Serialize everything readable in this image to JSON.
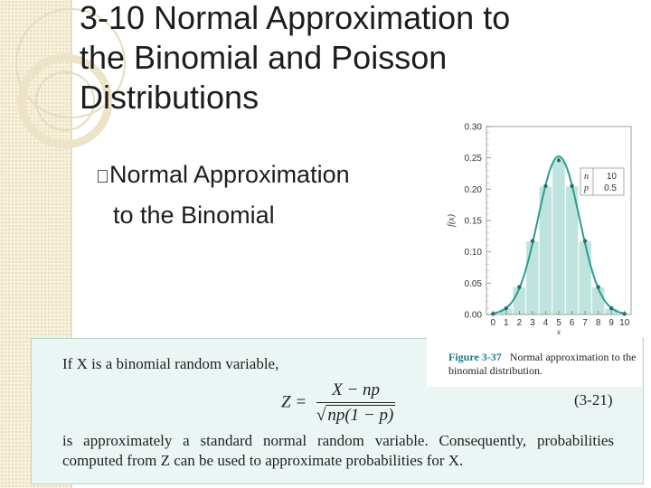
{
  "slide": {
    "title_lines": [
      "3-10 Normal Approximation to",
      "the Binomial and Poisson",
      "Distributions"
    ],
    "bullet_marker": "",
    "bullet_lines": [
      "Normal Approximation",
      "to the Binomial"
    ]
  },
  "figure": {
    "caption_label": "Figure 3-37",
    "caption_text": "Normal approximation to the binomial distribution.",
    "legend": {
      "n_label": "n",
      "n_value": "10",
      "p_label": "p",
      "p_value": "0.5"
    },
    "accent_color": "#2a9d8f",
    "bar_color": "#bfe3dd",
    "chart_data": {
      "type": "bar",
      "categories": [
        "0",
        "1",
        "2",
        "3",
        "4",
        "5",
        "6",
        "7",
        "8",
        "9",
        "10"
      ],
      "values": [
        0.001,
        0.0098,
        0.0439,
        0.1172,
        0.2051,
        0.2461,
        0.2051,
        0.1172,
        0.0439,
        0.0098,
        0.001
      ],
      "xlabel": "x",
      "ylabel": "f(x)",
      "yticks": [
        "0.00",
        "0.05",
        "0.10",
        "0.15",
        "0.20",
        "0.25",
        "0.30"
      ],
      "ylim": [
        0,
        0.3
      ],
      "xlim": [
        -0.5,
        10.5
      ],
      "overlay": {
        "type": "normal",
        "mean": 5,
        "variance": 2.5
      }
    }
  },
  "formula": {
    "intro": "If X is a binomial random variable,",
    "lhs": "Z =",
    "numerator": "X − np",
    "denominator_root": "√",
    "denominator_inner": "np(1 − p)",
    "eq_number": "(3-21)",
    "text": "is approximately a standard normal random variable. Consequently, probabilities computed from Z can be used to approximate probabilities for X."
  }
}
